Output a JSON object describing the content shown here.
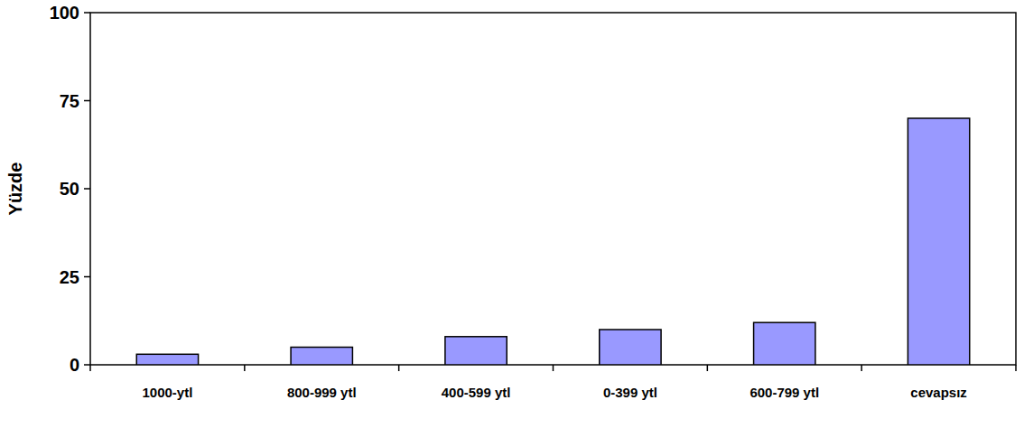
{
  "chart_data": {
    "type": "bar",
    "y_label": "Yüzde",
    "categories": [
      "1000-ytl",
      "800-999 ytl",
      "400-599 ytl",
      "0-399 ytl",
      "600-799 ytl",
      "cevapsız"
    ],
    "values": [
      3,
      5,
      8,
      10,
      12,
      70
    ],
    "color": "#9999ff",
    "ylim": [
      0,
      100
    ],
    "yticks": [
      0,
      25,
      50,
      75,
      100
    ],
    "grid": false
  }
}
